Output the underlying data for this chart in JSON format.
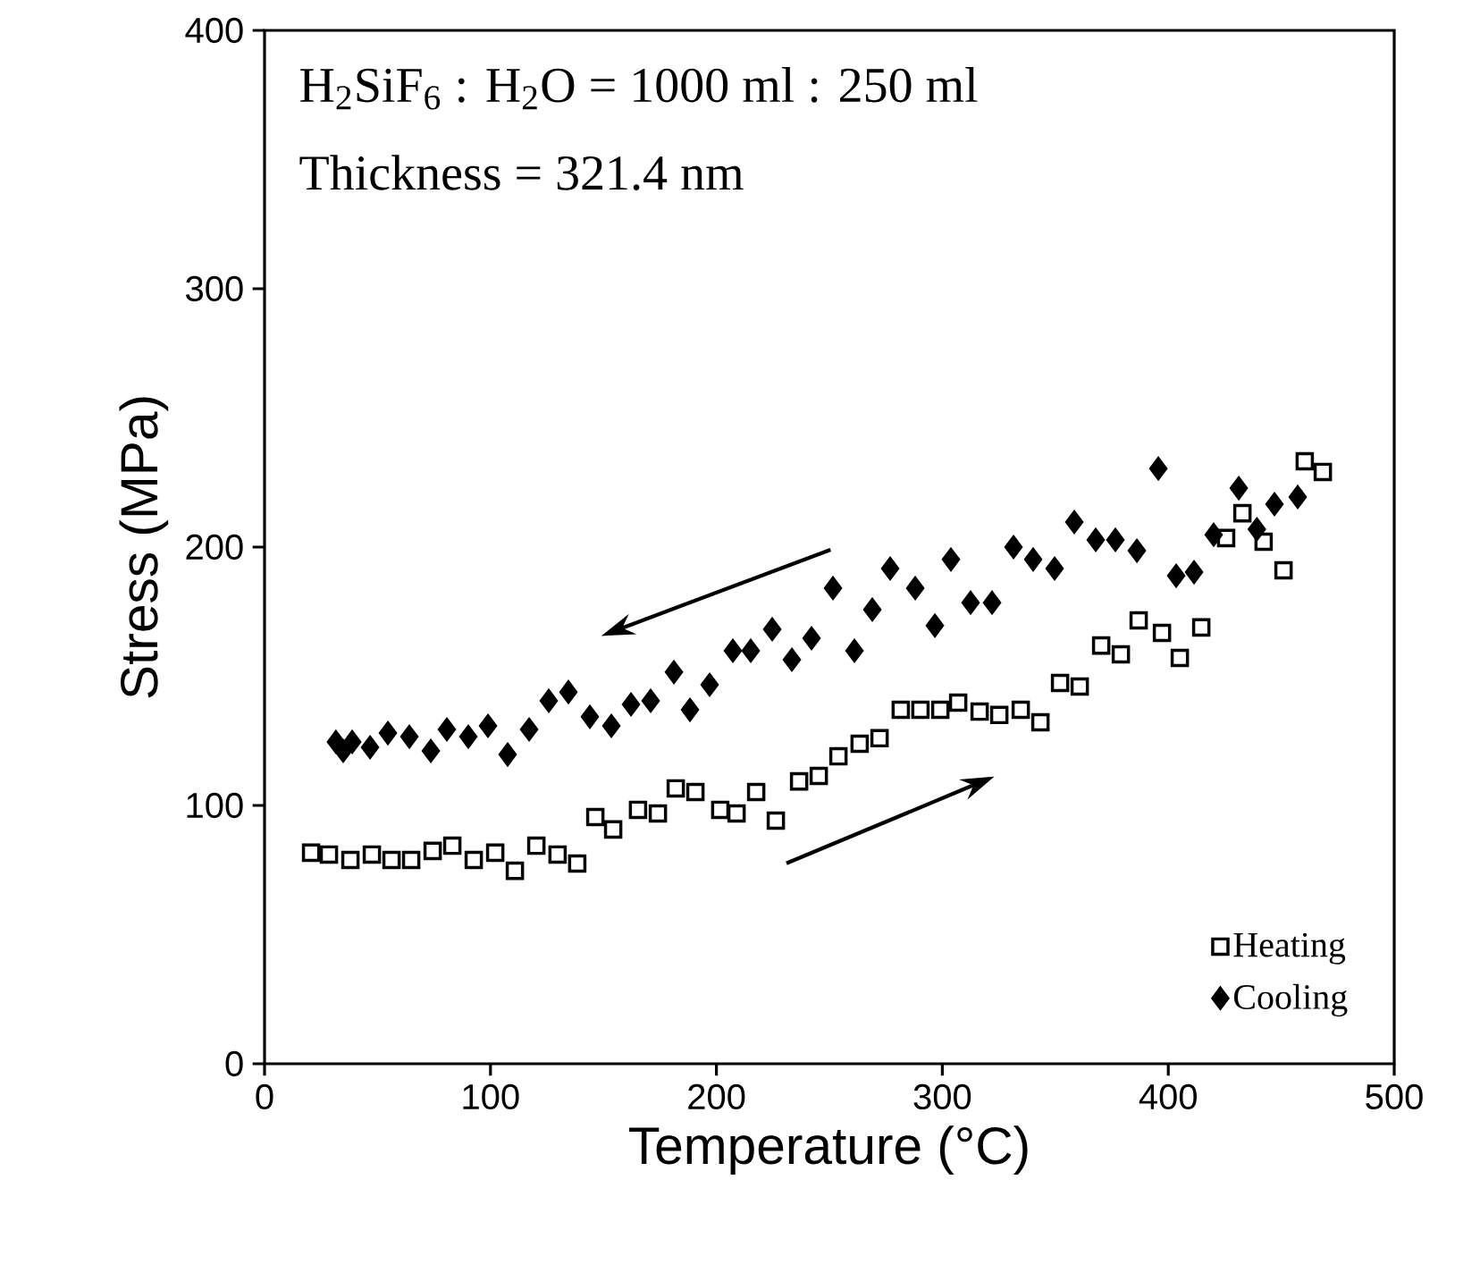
{
  "chart_data": {
    "type": "scatter",
    "xlabel": "Temperature (°C)",
    "ylabel": "Stress (MPa)",
    "xlim": [
      0,
      500
    ],
    "ylim": [
      0,
      400
    ],
    "xticks": [
      0,
      100,
      200,
      300,
      400,
      500
    ],
    "yticks": [
      0,
      100,
      200,
      300,
      400
    ],
    "legend": "bottom right",
    "grid": false,
    "annotations": [
      "H$_{2}$SiF$_{6}$ : H$_{2}$O = 1000 ml : 250 ml",
      "Thickness = 321.4 nm"
    ],
    "series": [
      {
        "name": "Heating",
        "color": "#000000",
        "marker": "square",
        "x": [
          20.6,
          28.5,
          38.0,
          47.5,
          56.2,
          64.9,
          74.4,
          83.1,
          92.6,
          102.1,
          110.8,
          120.3,
          129.7,
          138.4,
          146.4,
          154.3,
          165.3,
          174.1,
          182.0,
          190.7,
          201.7,
          208.9,
          217.6,
          226.3,
          236.6,
          245.3,
          254.0,
          263.4,
          272.2,
          281.6,
          290.3,
          299.1,
          307.0,
          316.5,
          325.2,
          334.7,
          343.4,
          352.1,
          360.8,
          370.3,
          379.0,
          386.9,
          397.2,
          405.1,
          414.6,
          425.6,
          432.8,
          442.2,
          451.0,
          460.4,
          468.4
        ],
        "values": [
          81.7,
          81.0,
          78.9,
          81.0,
          78.9,
          78.9,
          82.4,
          84.4,
          78.9,
          81.7,
          74.7,
          84.4,
          81.0,
          77.5,
          95.5,
          90.7,
          98.3,
          96.9,
          106.6,
          105.2,
          98.3,
          96.9,
          105.2,
          94.1,
          109.3,
          111.4,
          119.0,
          123.9,
          126.0,
          137.0,
          137.0,
          137.0,
          139.8,
          136.3,
          135.0,
          137.0,
          132.2,
          147.4,
          146.0,
          161.9,
          158.5,
          171.6,
          166.8,
          157.1,
          168.9,
          203.5,
          213.1,
          202.1,
          191.0,
          233.2,
          229.1
        ]
      },
      {
        "name": "Cooling",
        "color": "#000000",
        "marker": "diamond",
        "x": [
          31.6,
          34.8,
          38.8,
          46.7,
          54.6,
          64.1,
          73.6,
          80.7,
          90.2,
          98.9,
          107.6,
          117.1,
          125.8,
          134.5,
          144.0,
          153.5,
          162.2,
          170.9,
          181.2,
          188.3,
          197.0,
          207.3,
          215.2,
          224.7,
          233.4,
          242.1,
          251.6,
          261.1,
          269.0,
          276.9,
          288.0,
          296.7,
          303.8,
          312.5,
          322.0,
          331.5,
          340.2,
          349.7,
          358.4,
          367.9,
          376.6,
          386.1,
          395.6,
          403.5,
          411.4,
          420.1,
          431.2,
          439.2,
          447.0,
          457.3
        ],
        "values": [
          124.6,
          121.1,
          124.6,
          122.5,
          128.0,
          126.6,
          121.1,
          129.4,
          126.6,
          130.8,
          119.7,
          129.4,
          140.5,
          143.9,
          134.3,
          130.8,
          139.1,
          140.5,
          151.6,
          137.0,
          146.7,
          159.9,
          159.9,
          168.2,
          156.4,
          164.7,
          184.1,
          159.9,
          175.8,
          191.7,
          184.1,
          169.6,
          195.2,
          178.5,
          178.5,
          200.0,
          195.2,
          191.7,
          209.7,
          202.8,
          202.8,
          198.6,
          230.4,
          188.9,
          190.3,
          204.8,
          222.8,
          206.9,
          216.6,
          219.4
        ]
      }
    ]
  }
}
